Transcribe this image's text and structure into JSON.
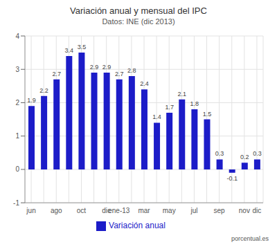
{
  "chart_data": {
    "type": "bar",
    "title": "Variación anual y mensual del IPC",
    "subtitle": "Datos: INE (dic 2013)",
    "source": "porcentual.es",
    "categories": [
      "jun",
      null,
      "ago",
      null,
      "oct",
      null,
      "dic",
      "ene-13",
      null,
      "mar",
      null,
      "may",
      null,
      "jul",
      null,
      "sep",
      null,
      "nov",
      "dic"
    ],
    "series": [
      {
        "name": "Variación anual",
        "color": "#1c1cc8",
        "values": [
          1.9,
          2.2,
          2.7,
          3.4,
          3.5,
          2.9,
          2.9,
          2.7,
          2.8,
          2.4,
          1.4,
          1.7,
          2.1,
          1.8,
          1.5,
          0.3,
          -0.1,
          0.2,
          0.3
        ]
      }
    ],
    "ylim": [
      -1,
      4
    ],
    "yticks": [
      -1,
      0,
      1,
      2,
      3,
      4
    ],
    "grid": true,
    "legend": "bottom",
    "data_labels": true
  }
}
